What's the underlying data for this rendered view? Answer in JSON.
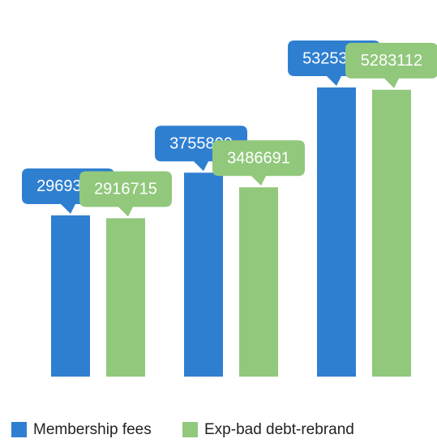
{
  "chart_data": {
    "type": "bar",
    "categories": [
      null,
      null,
      null
    ],
    "series": [
      {
        "name": "Membership fees",
        "color": "#2f7fd1",
        "values": [
          2969300,
          3755800,
          5325300
        ]
      },
      {
        "name": "Exp-bad debt-rebrand",
        "color": "#91c87c",
        "values": [
          2916715,
          3486691,
          5283112
        ]
      }
    ],
    "legend": "bottom"
  }
}
